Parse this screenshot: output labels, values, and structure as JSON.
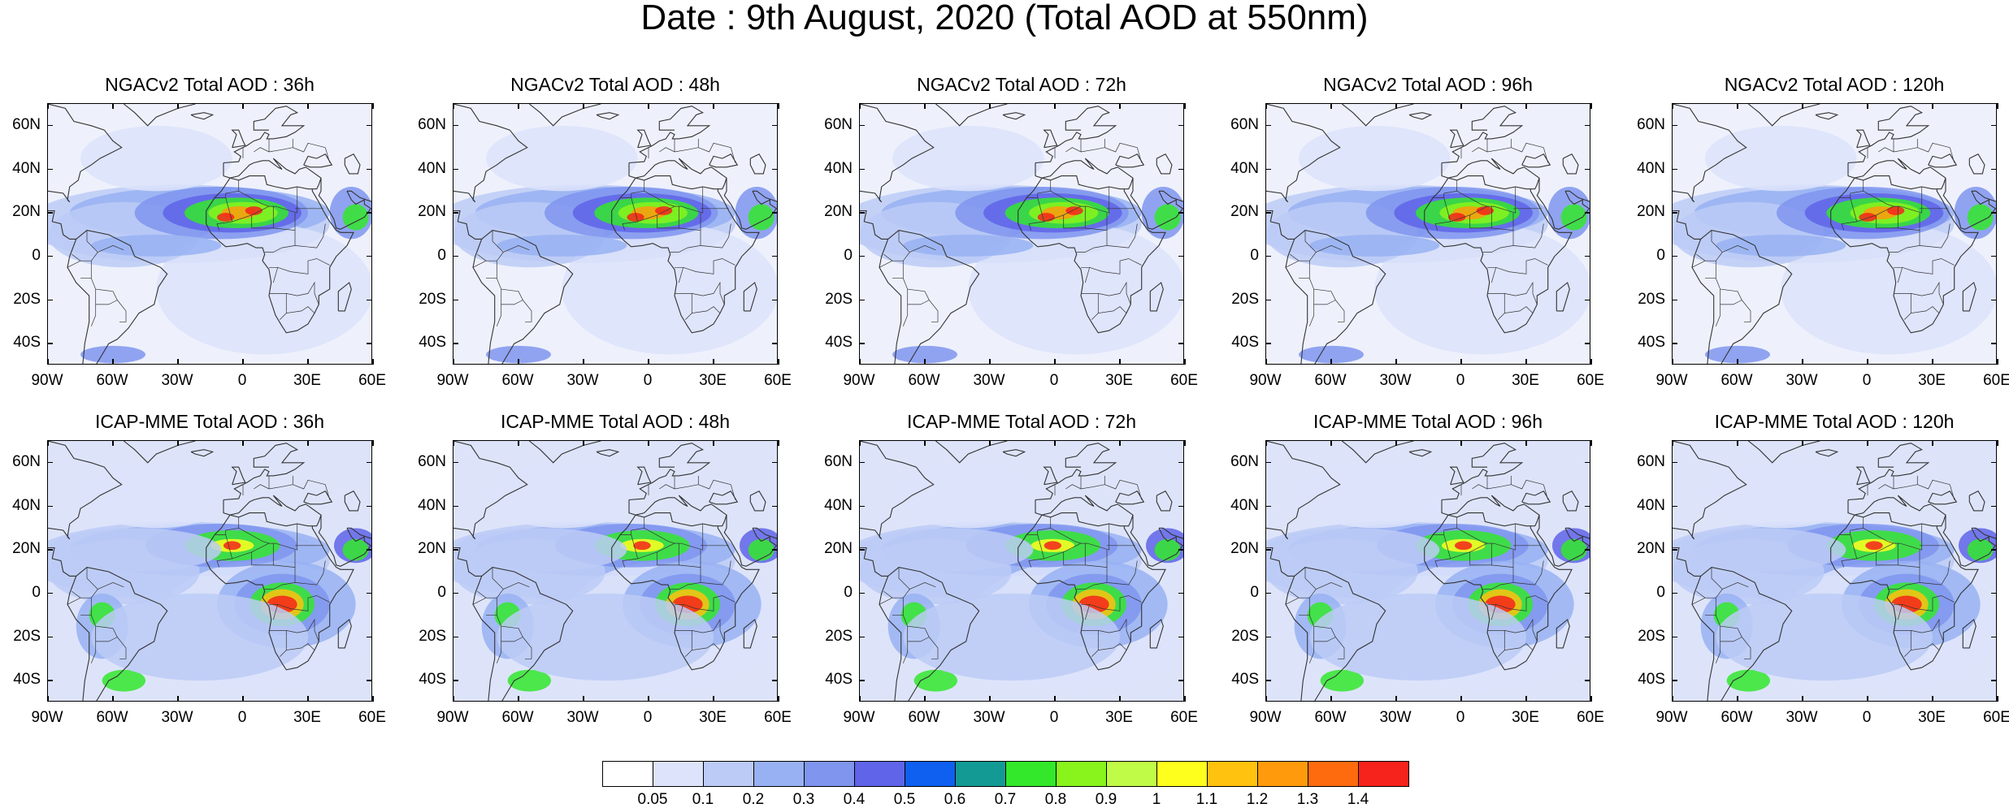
{
  "title": "Date : 9th August, 2020 (Total AOD at 550nm)",
  "panels": [
    {
      "title": "NGACv2 Total AOD : 36h",
      "model": "NGACv2",
      "lead": "36h"
    },
    {
      "title": "NGACv2 Total AOD : 48h",
      "model": "NGACv2",
      "lead": "48h"
    },
    {
      "title": "NGACv2 Total AOD : 72h",
      "model": "NGACv2",
      "lead": "72h"
    },
    {
      "title": "NGACv2 Total AOD : 96h",
      "model": "NGACv2",
      "lead": "96h"
    },
    {
      "title": "NGACv2 Total AOD : 120h",
      "model": "NGACv2",
      "lead": "120h"
    },
    {
      "title": "ICAP-MME Total AOD : 36h",
      "model": "ICAP-MME",
      "lead": "36h"
    },
    {
      "title": "ICAP-MME Total AOD : 48h",
      "model": "ICAP-MME",
      "lead": "48h"
    },
    {
      "title": "ICAP-MME Total AOD : 72h",
      "model": "ICAP-MME",
      "lead": "72h"
    },
    {
      "title": "ICAP-MME Total AOD : 96h",
      "model": "ICAP-MME",
      "lead": "96h"
    },
    {
      "title": "ICAP-MME Total AOD : 120h",
      "model": "ICAP-MME",
      "lead": "120h"
    }
  ],
  "axes": {
    "lat_ticks": [
      "60N",
      "40N",
      "20N",
      "0",
      "20S",
      "40S"
    ],
    "lon_ticks": [
      "90W",
      "60W",
      "30W",
      "0",
      "30E",
      "60E"
    ],
    "lon_range": [
      -90,
      60
    ],
    "lat_range": [
      -50,
      70
    ]
  },
  "colorbar": {
    "labels": [
      "0.05",
      "0.1",
      "0.2",
      "0.3",
      "0.4",
      "0.5",
      "0.6",
      "0.7",
      "0.8",
      "0.9",
      "1",
      "1.1",
      "1.2",
      "1.3",
      "1.4"
    ],
    "colors": [
      "#ffffff",
      "#dce3fa",
      "#bccbf6",
      "#98b1f2",
      "#7f95ee",
      "#5f64e8",
      "#0f5ff0",
      "#139a94",
      "#33e82b",
      "#88f41c",
      "#c0fb47",
      "#ffff1e",
      "#ffc20e",
      "#ff9a0d",
      "#fd6b0e",
      "#f5231b"
    ]
  },
  "map_colors": {
    "land_line": "#333333",
    "ocean_bg": "#dde4fa"
  }
}
